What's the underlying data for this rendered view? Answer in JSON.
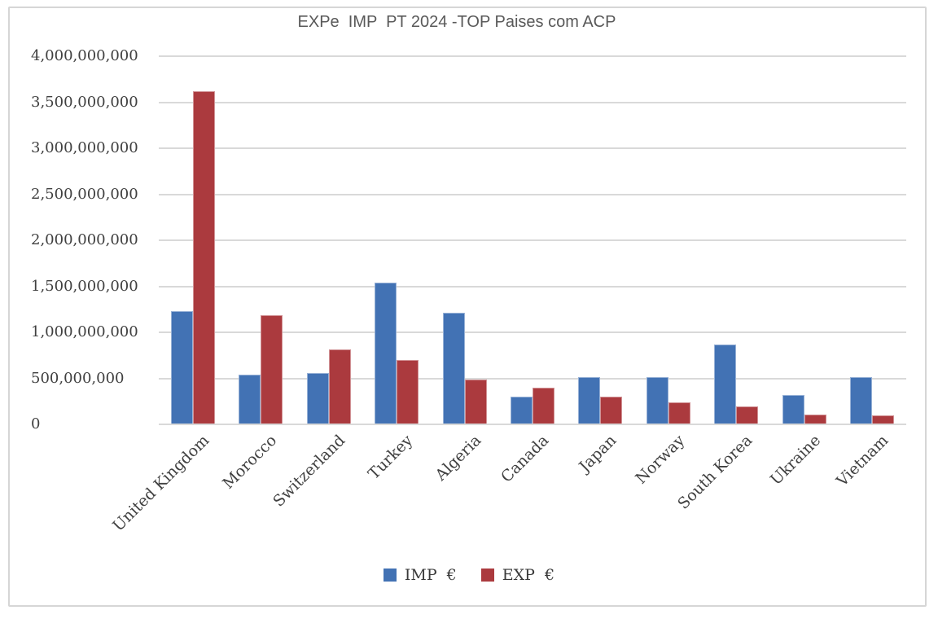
{
  "chart_data": {
    "type": "bar",
    "title": "EXPe  IMP  PT 2024 -TOP Paises com ACP",
    "xlabel": "",
    "ylabel": "",
    "categories": [
      "United Kingdom",
      "Morocco",
      "Switzerland",
      "Turkey",
      "Algeria",
      "Canada",
      "Japan",
      "Norway",
      "South Korea",
      "Ukraine",
      "Vietnam"
    ],
    "series": [
      {
        "key": "imp",
        "name": "IMP  €",
        "color": "#4272B4",
        "values": [
          1220000000,
          530000000,
          550000000,
          1530000000,
          1200000000,
          295000000,
          505000000,
          505000000,
          860000000,
          310000000,
          500000000
        ]
      },
      {
        "key": "exp",
        "name": "EXP  €",
        "color": "#AB3A3E",
        "values": [
          3610000000,
          1175000000,
          805000000,
          690000000,
          480000000,
          390000000,
          295000000,
          230000000,
          190000000,
          95000000,
          90000000
        ]
      }
    ],
    "ylim": [
      0,
      4000000000
    ],
    "ytick_step": 500000000,
    "ytick_labels": [
      "0",
      "500,000,000",
      "1,000,000,000",
      "1,500,000,000",
      "2,000,000,000",
      "2,500,000,000",
      "3,000,000,000",
      "3,500,000,000",
      "4,000,000,000"
    ],
    "grid": true,
    "legend_position": "bottom"
  },
  "chart_style": {
    "gridline_color": "#D9D9D9",
    "frame_border_color": "#D6D6D6",
    "title_color": "#595959",
    "tick_text_color": "#404040"
  }
}
